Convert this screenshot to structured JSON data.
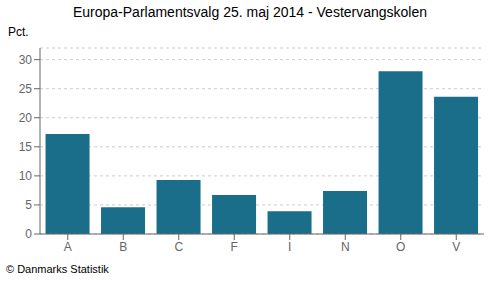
{
  "chart_data": {
    "type": "bar",
    "title": "Europa-Parlamentsvalg 25. maj 2014 - Vestervangskolen",
    "ylabel": "Pct.",
    "categories": [
      "A",
      "B",
      "C",
      "F",
      "I",
      "N",
      "O",
      "V"
    ],
    "values": [
      17.2,
      4.6,
      9.3,
      6.7,
      3.9,
      7.4,
      28.0,
      23.6
    ],
    "color": "#1a6e8a",
    "ylim": [
      0,
      32
    ],
    "yticks": [
      0,
      5,
      10,
      15,
      20,
      25,
      30
    ],
    "grid": true,
    "annotations": [
      "© Danmarks Statistik"
    ]
  }
}
